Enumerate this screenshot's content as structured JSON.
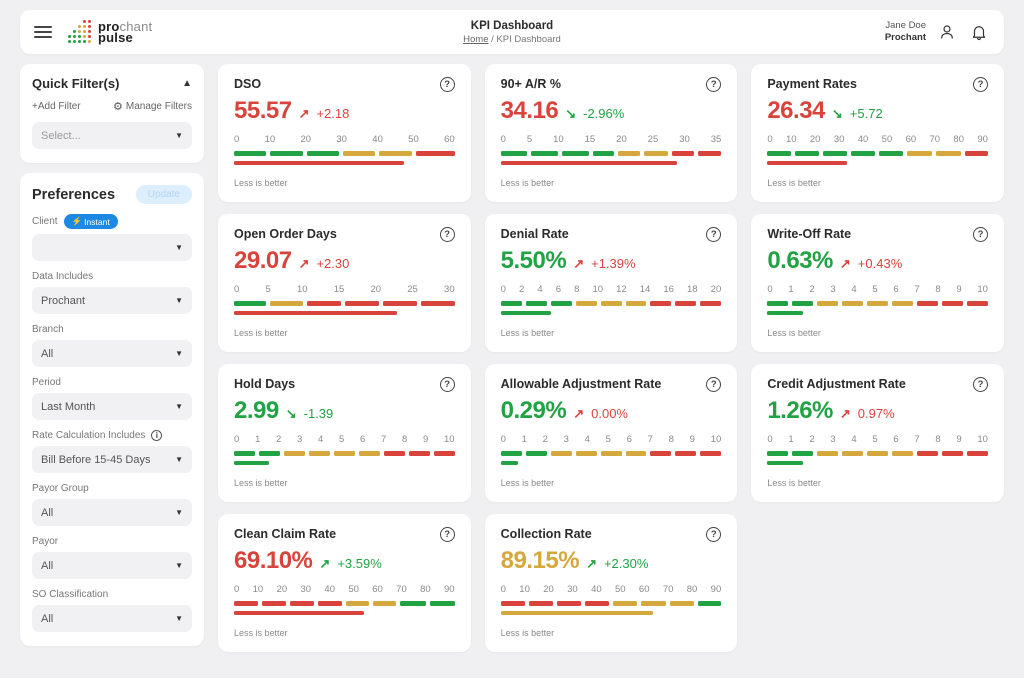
{
  "colors": {
    "green": "#21a243",
    "gold": "#d5a83e",
    "red": "#d8443c",
    "blue": "#1e88e5"
  },
  "header": {
    "logo": {
      "word1_bold": "pro",
      "word1_light": "chant",
      "word2": "pulse"
    },
    "title": "KPI Dashboard",
    "breadcrumb": {
      "home": "Home",
      "separator": "/",
      "current": "KPI Dashboard"
    },
    "user": {
      "name": "Jane Doe",
      "company": "Prochant"
    }
  },
  "sidebar": {
    "quick_filters": {
      "title": "Quick Filter(s)",
      "add_filter": "+Add Filter",
      "manage_filters": "Manage Filters",
      "select_placeholder": "Select..."
    },
    "preferences": {
      "title": "Preferences",
      "update_button": "Update",
      "fields": [
        {
          "label": "Client",
          "value": "",
          "badge": "Instant"
        },
        {
          "label": "Data Includes",
          "value": "Prochant"
        },
        {
          "label": "Branch",
          "value": "All"
        },
        {
          "label": "Period",
          "value": "Last Month"
        },
        {
          "label": "Rate Calculation Includes",
          "value": "Bill Before 15-45 Days",
          "info": true
        },
        {
          "label": "Payor Group",
          "value": "All"
        },
        {
          "label": "Payor",
          "value": "All"
        },
        {
          "label": "SO Classification",
          "value": "All"
        }
      ]
    }
  },
  "chart_data": [
    {
      "type": "bullet",
      "title": "DSO",
      "value": "55.57",
      "value_color": "red",
      "arrow": "up",
      "arrow_color": "red",
      "delta": "+2.18",
      "delta_color": "red",
      "ticks": [
        0,
        10,
        20,
        30,
        40,
        50,
        60
      ],
      "axis_range": [
        0,
        62
      ],
      "segments": [
        {
          "color": "green",
          "span": 10
        },
        {
          "color": "green",
          "span": 10
        },
        {
          "color": "green",
          "span": 10
        },
        {
          "color": "gold",
          "span": 10
        },
        {
          "color": "gold",
          "span": 10
        },
        {
          "color": "red",
          "span": 12
        }
      ],
      "value_bar": {
        "color": "red",
        "pct": 77
      },
      "footnote": "Less is better"
    },
    {
      "type": "bullet",
      "title": "90+ A/R %",
      "value": "34.16",
      "value_color": "red",
      "arrow": "down",
      "arrow_color": "green",
      "delta": "-2.96%",
      "delta_color": "green",
      "ticks": [
        0,
        5,
        10,
        15,
        20,
        25,
        30,
        35
      ],
      "axis_range": [
        0,
        36
      ],
      "segments": [
        {
          "color": "green",
          "span": 5
        },
        {
          "color": "green",
          "span": 5
        },
        {
          "color": "green",
          "span": 5
        },
        {
          "color": "green",
          "span": 4
        },
        {
          "color": "gold",
          "span": 4
        },
        {
          "color": "gold",
          "span": 4.5
        },
        {
          "color": "red",
          "span": 4.2
        },
        {
          "color": "red",
          "span": 4.3
        }
      ],
      "value_bar": {
        "color": "red",
        "pct": 80
      },
      "footnote": "Less is better"
    },
    {
      "type": "bullet",
      "title": "Payment Rates",
      "value": "26.34",
      "value_color": "red",
      "arrow": "down",
      "arrow_color": "green",
      "delta": "+5.72",
      "delta_color": "green",
      "ticks": [
        0,
        10,
        20,
        30,
        40,
        50,
        60,
        70,
        80,
        90
      ],
      "axis_range": [
        0,
        92
      ],
      "segments": [
        {
          "color": "green",
          "span": 11.4
        },
        {
          "color": "green",
          "span": 11.4
        },
        {
          "color": "green",
          "span": 11.4
        },
        {
          "color": "green",
          "span": 11.4
        },
        {
          "color": "green",
          "span": 11.4
        },
        {
          "color": "gold",
          "span": 12
        },
        {
          "color": "gold",
          "span": 12
        },
        {
          "color": "red",
          "span": 11
        }
      ],
      "value_bar": {
        "color": "red",
        "pct": 36
      },
      "footnote": "Less is better"
    },
    {
      "type": "bullet",
      "title": "Open Order Days",
      "value": "29.07",
      "value_color": "red",
      "arrow": "up",
      "arrow_color": "red",
      "delta": "+2.30",
      "delta_color": "red",
      "ticks": [
        0,
        5,
        10,
        15,
        20,
        25,
        30
      ],
      "axis_range": [
        0,
        31
      ],
      "segments": [
        {
          "color": "green",
          "span": 5
        },
        {
          "color": "gold",
          "span": 5
        },
        {
          "color": "red",
          "span": 5.25
        },
        {
          "color": "red",
          "span": 5.25
        },
        {
          "color": "red",
          "span": 5.25
        },
        {
          "color": "red",
          "span": 5.25
        }
      ],
      "value_bar": {
        "color": "red",
        "pct": 74
      },
      "footnote": "Less is better"
    },
    {
      "type": "bullet",
      "title": "Denial Rate",
      "value": "5.50%",
      "value_color": "green",
      "arrow": "up",
      "arrow_color": "red",
      "delta": "+1.39%",
      "delta_color": "red",
      "ticks": [
        0,
        2,
        4,
        6,
        8,
        10,
        12,
        14,
        16,
        18,
        20
      ],
      "axis_range": [
        0,
        20.5
      ],
      "segments": [
        {
          "color": "green",
          "span": 1
        },
        {
          "color": "green",
          "span": 1
        },
        {
          "color": "green",
          "span": 1
        },
        {
          "color": "gold",
          "span": 1
        },
        {
          "color": "gold",
          "span": 1
        },
        {
          "color": "gold",
          "span": 1
        },
        {
          "color": "red",
          "span": 1
        },
        {
          "color": "red",
          "span": 1
        },
        {
          "color": "red",
          "span": 1
        }
      ],
      "value_bar": {
        "color": "green",
        "pct": 23
      },
      "footnote": "Less is better"
    },
    {
      "type": "bullet",
      "title": "Write-Off Rate",
      "value": "0.63%",
      "value_color": "green",
      "arrow": "up",
      "arrow_color": "red",
      "delta": "+0.43%",
      "delta_color": "red",
      "ticks": [
        0,
        1,
        2,
        3,
        4,
        5,
        6,
        7,
        8,
        9,
        10
      ],
      "axis_range": [
        0,
        10.2
      ],
      "segments": [
        {
          "color": "green",
          "span": 1
        },
        {
          "color": "green",
          "span": 1
        },
        {
          "color": "gold",
          "span": 1
        },
        {
          "color": "gold",
          "span": 1
        },
        {
          "color": "gold",
          "span": 1
        },
        {
          "color": "gold",
          "span": 1
        },
        {
          "color": "red",
          "span": 1
        },
        {
          "color": "red",
          "span": 1
        },
        {
          "color": "red",
          "span": 1
        }
      ],
      "value_bar": {
        "color": "green",
        "pct": 16
      },
      "footnote": "Less is better"
    },
    {
      "type": "bullet",
      "title": "Hold Days",
      "value": "2.99",
      "value_color": "green",
      "arrow": "down",
      "arrow_color": "green",
      "delta": "-1.39",
      "delta_color": "green",
      "ticks": [
        0,
        1,
        2,
        3,
        4,
        5,
        6,
        7,
        8,
        9,
        10
      ],
      "axis_range": [
        0,
        10.2
      ],
      "segments": [
        {
          "color": "green",
          "span": 1
        },
        {
          "color": "green",
          "span": 1
        },
        {
          "color": "gold",
          "span": 1
        },
        {
          "color": "gold",
          "span": 1
        },
        {
          "color": "gold",
          "span": 1
        },
        {
          "color": "gold",
          "span": 1
        },
        {
          "color": "red",
          "span": 1
        },
        {
          "color": "red",
          "span": 1
        },
        {
          "color": "red",
          "span": 1
        }
      ],
      "value_bar": {
        "color": "green",
        "pct": 16
      },
      "footnote": "Less is better"
    },
    {
      "type": "bullet",
      "title": "Allowable Adjustment Rate",
      "value": "0.29%",
      "value_color": "green",
      "arrow": "up",
      "arrow_color": "red",
      "delta": "0.00%",
      "delta_color": "red",
      "ticks": [
        0,
        1,
        2,
        3,
        4,
        5,
        6,
        7,
        8,
        9,
        10
      ],
      "axis_range": [
        0,
        10.2
      ],
      "segments": [
        {
          "color": "green",
          "span": 1
        },
        {
          "color": "green",
          "span": 1
        },
        {
          "color": "gold",
          "span": 1
        },
        {
          "color": "gold",
          "span": 1
        },
        {
          "color": "gold",
          "span": 1
        },
        {
          "color": "gold",
          "span": 1
        },
        {
          "color": "red",
          "span": 1
        },
        {
          "color": "red",
          "span": 1
        },
        {
          "color": "red",
          "span": 1
        }
      ],
      "value_bar": {
        "color": "green",
        "pct": 8
      },
      "footnote": "Less is better"
    },
    {
      "type": "bullet",
      "title": "Credit Adjustment Rate",
      "value": "1.26%",
      "value_color": "green",
      "arrow": "up",
      "arrow_color": "red",
      "delta": "0.97%",
      "delta_color": "red",
      "ticks": [
        0,
        1,
        2,
        3,
        4,
        5,
        6,
        7,
        8,
        9,
        10
      ],
      "axis_range": [
        0,
        10.2
      ],
      "segments": [
        {
          "color": "green",
          "span": 1
        },
        {
          "color": "green",
          "span": 1
        },
        {
          "color": "gold",
          "span": 1
        },
        {
          "color": "gold",
          "span": 1
        },
        {
          "color": "gold",
          "span": 1
        },
        {
          "color": "gold",
          "span": 1
        },
        {
          "color": "red",
          "span": 1
        },
        {
          "color": "red",
          "span": 1
        },
        {
          "color": "red",
          "span": 1
        }
      ],
      "value_bar": {
        "color": "green",
        "pct": 16
      },
      "footnote": "Less is better"
    },
    {
      "type": "bullet",
      "title": "Clean Claim Rate",
      "value": "69.10%",
      "value_color": "red",
      "arrow": "up",
      "arrow_color": "green",
      "delta": "+3.59%",
      "delta_color": "green",
      "ticks": [
        0,
        10,
        20,
        30,
        40,
        50,
        60,
        70,
        80,
        90
      ],
      "axis_range": [
        0,
        92
      ],
      "segments": [
        {
          "color": "red",
          "span": 11.5
        },
        {
          "color": "red",
          "span": 11.5
        },
        {
          "color": "red",
          "span": 11.5
        },
        {
          "color": "red",
          "span": 11.5
        },
        {
          "color": "gold",
          "span": 11
        },
        {
          "color": "gold",
          "span": 11
        },
        {
          "color": "green",
          "span": 12
        },
        {
          "color": "green",
          "span": 12
        }
      ],
      "value_bar": {
        "color": "red",
        "pct": 59
      },
      "footnote": "Less is better"
    },
    {
      "type": "bullet",
      "title": "Collection Rate",
      "value": "89.15%",
      "value_color": "gold",
      "arrow": "up",
      "arrow_color": "green",
      "delta": "+2.30%",
      "delta_color": "green",
      "ticks": [
        0,
        10,
        20,
        30,
        40,
        50,
        60,
        70,
        80,
        90
      ],
      "axis_range": [
        0,
        92
      ],
      "segments": [
        {
          "color": "red",
          "span": 11.5
        },
        {
          "color": "red",
          "span": 11.5
        },
        {
          "color": "red",
          "span": 11.5
        },
        {
          "color": "red",
          "span": 11.5
        },
        {
          "color": "gold",
          "span": 11.7
        },
        {
          "color": "gold",
          "span": 11.7
        },
        {
          "color": "gold",
          "span": 11.7
        },
        {
          "color": "green",
          "span": 11
        }
      ],
      "value_bar": {
        "color": "gold",
        "pct": 69
      },
      "footnote": "Less is better"
    }
  ]
}
